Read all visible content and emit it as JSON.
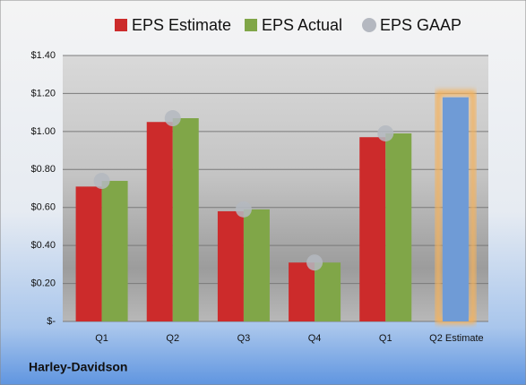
{
  "chart_data": {
    "type": "bar",
    "footer": "Harley-Davidson",
    "categories": [
      "Q1",
      "Q2",
      "Q3",
      "Q4",
      "Q1",
      "Q2 Estimate"
    ],
    "series": [
      {
        "name": "EPS Estimate",
        "color": "#cc2b2b",
        "point_colors": [
          "#cc2b2b",
          "#cc2b2b",
          "#cc2b2b",
          "#cc2b2b",
          "#cc2b2b",
          "#6f9bd6"
        ],
        "glow_color": "#f5b25c",
        "values": [
          0.71,
          1.05,
          0.58,
          0.31,
          0.97,
          1.18
        ]
      },
      {
        "name": "EPS Actual",
        "color": "#80a648",
        "values": [
          0.74,
          1.07,
          0.59,
          0.31,
          0.99,
          null
        ]
      },
      {
        "name": "EPS GAAP",
        "color": "#b4b8c0",
        "marker": "circle",
        "values": [
          0.74,
          1.07,
          0.59,
          0.31,
          0.99,
          null
        ]
      }
    ],
    "ylim": [
      0,
      1.4
    ],
    "yticks": [
      {
        "value": 0,
        "label": "$-"
      },
      {
        "value": 0.2,
        "label": "$0.20"
      },
      {
        "value": 0.4,
        "label": "$0.40"
      },
      {
        "value": 0.6,
        "label": "$0.60"
      },
      {
        "value": 0.8,
        "label": "$0.80"
      },
      {
        "value": 1.0,
        "label": "$1.00"
      },
      {
        "value": 1.2,
        "label": "$1.20"
      },
      {
        "value": 1.4,
        "label": "$1.40"
      }
    ],
    "grid": true
  }
}
